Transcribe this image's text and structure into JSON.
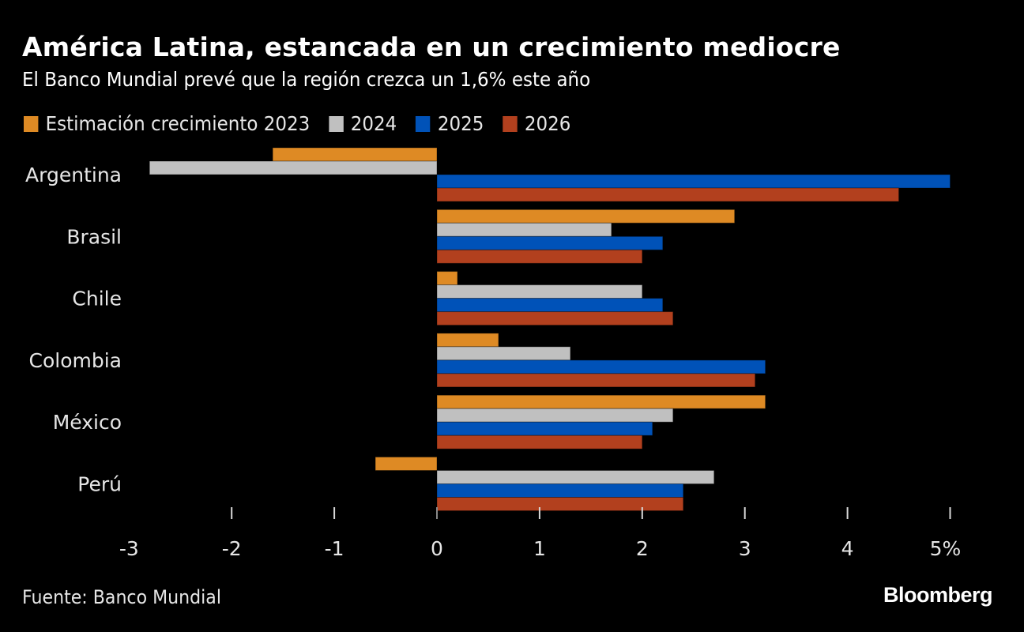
{
  "header": {
    "title": "América Latina, estancada en un crecimiento mediocre",
    "subtitle": "El Banco Mundial prevé que la región crezca un 1,6% este año"
  },
  "footer": {
    "source": "Fuente: Banco Mundial",
    "brand": "Bloomberg"
  },
  "chart_data": {
    "type": "bar",
    "orientation": "horizontal",
    "title": "América Latina, estancada en un crecimiento mediocre",
    "subtitle": "El Banco Mundial prevé que la región crezca un 1,6% este año",
    "xlabel": "",
    "ylabel": "",
    "categories": [
      "Argentina",
      "Brasil",
      "Chile",
      "Colombia",
      "México",
      "Perú"
    ],
    "series": [
      {
        "name": "Estimación crecimiento 2023",
        "color": "#de8a24",
        "values": [
          -1.6,
          2.9,
          0.2,
          0.6,
          3.2,
          -0.6
        ]
      },
      {
        "name": "2024",
        "color": "#c0c0c0",
        "values": [
          -2.8,
          1.7,
          2.0,
          1.3,
          2.3,
          2.7
        ]
      },
      {
        "name": "2025",
        "color": "#0052b8",
        "values": [
          5.0,
          2.2,
          2.2,
          3.2,
          2.1,
          2.4
        ]
      },
      {
        "name": "2026",
        "color": "#b2401e",
        "values": [
          4.5,
          2.0,
          2.3,
          3.1,
          2.0,
          2.4
        ]
      }
    ],
    "xlim": [
      -3,
      5
    ],
    "xticks": [
      -3,
      -2,
      -1,
      0,
      1,
      2,
      3,
      4,
      5
    ],
    "xtick_labels": [
      "-3",
      "-2",
      "-1",
      "0",
      "1",
      "2",
      "3",
      "4",
      "5%"
    ],
    "grid": false,
    "legend_position": "top-left",
    "source": "Fuente: Banco Mundial"
  }
}
